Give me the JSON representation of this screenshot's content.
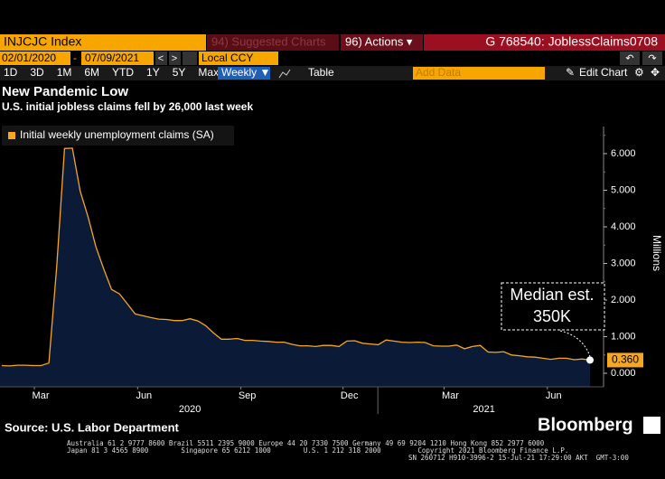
{
  "ui": {
    "ticker": "INJCJC Index",
    "suggested": "94) Suggested Charts",
    "actions": "96) Actions ▾",
    "chart_id": "G 768540: JoblessClaims0708",
    "start_date": "02/01/2020",
    "end_date": "07/09/2021",
    "currency": "Local CCY",
    "periods": [
      "1D",
      "3D",
      "1M",
      "6M",
      "YTD",
      "1Y",
      "5Y",
      "Max"
    ],
    "frequency": "Weekly ▼",
    "table": "Table",
    "add_data": "Add Data",
    "edit_chart": "Edit Chart",
    "source": "Source: U.S. Labor Department",
    "brand": "Bloomberg",
    "footer": [
      "Australia 61 2 9777 8600 Brazil 5511 2395 9000 Europe 44 20 7330 7500 Germany 49 69 9204 1210 Hong Kong 852 2977 6000",
      "Japan 81 3 4565 8900        Singapore 65 6212 1000        U.S. 1 212 318 2000         Copyright 2021 Bloomberg Finance L.P.",
      "SN 260712 H910-3996-2 15-Jul-21 17:29:00 AKT  GMT-3:00"
    ]
  },
  "chart_data": {
    "type": "area",
    "title": "New Pandemic Low",
    "subtitle": "U.S. initial jobless claims fell by 26,000 last week",
    "y_label": "Millions",
    "series": [
      {
        "name": "Initial weekly unemployment claims (SA)",
        "color": "#f5a623",
        "values": [
          0.21,
          0.2,
          0.22,
          0.22,
          0.21,
          0.21,
          0.28,
          2.92,
          6.14,
          6.15,
          4.97,
          4.27,
          3.45,
          2.85,
          2.29,
          2.17,
          1.9,
          1.62,
          1.57,
          1.52,
          1.48,
          1.47,
          1.44,
          1.44,
          1.49,
          1.43,
          1.3,
          1.1,
          0.93,
          0.93,
          0.95,
          0.9,
          0.9,
          0.88,
          0.87,
          0.85,
          0.85,
          0.79,
          0.75,
          0.75,
          0.73,
          0.76,
          0.76,
          0.73,
          0.88,
          0.89,
          0.82,
          0.8,
          0.78,
          0.91,
          0.88,
          0.85,
          0.84,
          0.85,
          0.84,
          0.75,
          0.74,
          0.74,
          0.77,
          0.67,
          0.73,
          0.76,
          0.58,
          0.57,
          0.59,
          0.5,
          0.48,
          0.45,
          0.44,
          0.41,
          0.38,
          0.41,
          0.41,
          0.37,
          0.39,
          0.36
        ]
      }
    ],
    "last_value_label": "0.360",
    "annotation": [
      "Median est.",
      "350K"
    ],
    "ylim": [
      -0.37,
      6.74
    ],
    "yticks": [
      {
        "value": 0,
        "label": "0.000"
      },
      {
        "value": 1,
        "label": "1.000"
      },
      {
        "value": 2,
        "label": "2.000"
      },
      {
        "value": 3,
        "label": "3.000"
      },
      {
        "value": 4,
        "label": "4.000"
      },
      {
        "value": 5,
        "label": "5.000"
      },
      {
        "value": 6,
        "label": "6.000"
      }
    ],
    "xticks": [
      {
        "value": "2020-03",
        "label": "Mar"
      },
      {
        "value": "2020-06",
        "label": "Jun"
      },
      {
        "value": "2020-09",
        "label": "Sep"
      },
      {
        "value": "2020-12",
        "label": "Dec"
      },
      {
        "value": "2021-03",
        "label": "Mar"
      },
      {
        "value": "2021-06",
        "label": "Jun"
      }
    ],
    "years": [
      "2020",
      "2021"
    ],
    "fill": "#0b1a36",
    "grid": false
  }
}
